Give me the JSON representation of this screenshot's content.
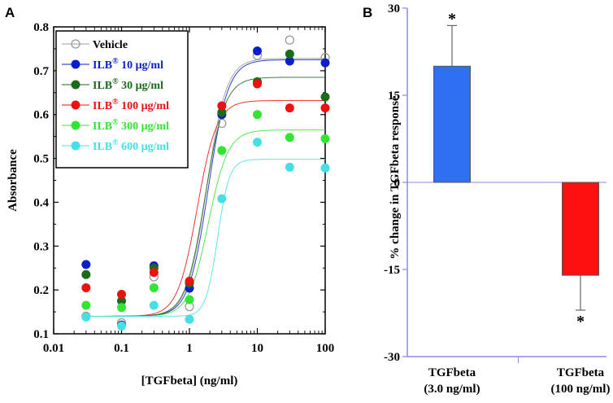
{
  "panel_a_letter": "A",
  "panel_b_letter": "B",
  "chart_data": [
    {
      "type": "scatter",
      "xscale": "log",
      "xlabel": "[TGFbeta] (ng/ml)",
      "ylabel": "Absorbance",
      "xlim": [
        0.01,
        100
      ],
      "ylim": [
        0.1,
        0.8
      ],
      "xticks": [
        0.01,
        0.1,
        1,
        10,
        100
      ],
      "xtick_labels": [
        "0.01",
        "0.1",
        "1",
        "10",
        "100"
      ],
      "yticks": [
        0.1,
        0.2,
        0.3,
        0.4,
        0.5,
        0.6,
        0.7,
        0.8
      ],
      "ytick_labels": [
        "0.1",
        "0.2",
        "0.3",
        "0.4",
        "0.5",
        "0.6",
        "0.7",
        "0.8"
      ],
      "legend_position": "top-left",
      "x": [
        0.03,
        0.1,
        0.3,
        1,
        3,
        10,
        30,
        100
      ],
      "series": [
        {
          "name": "Vehicle",
          "prefix": "",
          "suffix": "",
          "color": "#999999",
          "hollow": true,
          "values": [
            0.14,
            0.125,
            0.23,
            0.162,
            0.58,
            0.735,
            0.77,
            0.73
          ],
          "fit": {
            "bottom": 0.14,
            "top": 0.728,
            "ec50": 1.8,
            "hill": 3.0
          }
        },
        {
          "name": "ILB® 10 μg/ml",
          "prefix": "ILB",
          "suffix": " 10 μg/ml",
          "color": "#0a1fc8",
          "hollow": false,
          "values": [
            0.258,
            0.12,
            0.255,
            0.204,
            0.6,
            0.745,
            0.722,
            0.718
          ],
          "fit": {
            "bottom": 0.14,
            "top": 0.725,
            "ec50": 1.9,
            "hill": 3.0
          }
        },
        {
          "name": "ILB® 30 μg/ml",
          "prefix": "ILB",
          "suffix": " 30 μg/ml",
          "color": "#1a6b1a",
          "hollow": false,
          "values": [
            0.235,
            0.175,
            0.25,
            0.215,
            0.605,
            0.675,
            0.738,
            0.64
          ],
          "fit": {
            "bottom": 0.14,
            "top": 0.685,
            "ec50": 1.7,
            "hill": 3.0
          }
        },
        {
          "name": "ILB® 100 μg/ml",
          "prefix": "ILB",
          "suffix": " 100 μg/ml",
          "color": "#ee1111",
          "hollow": false,
          "values": [
            0.205,
            0.19,
            0.24,
            0.22,
            0.62,
            0.67,
            0.615,
            0.615
          ],
          "fit": {
            "bottom": 0.14,
            "top": 0.632,
            "ec50": 1.3,
            "hill": 3.0
          }
        },
        {
          "name": "ILB® 300 μg/ml",
          "prefix": "ILB",
          "suffix": " 300 μg/ml",
          "color": "#33e533",
          "hollow": false,
          "values": [
            0.165,
            0.16,
            0.205,
            0.178,
            0.518,
            0.6,
            0.548,
            0.545
          ],
          "fit": {
            "bottom": 0.14,
            "top": 0.565,
            "ec50": 1.9,
            "hill": 3.0
          }
        },
        {
          "name": "ILB® 600 μg/ml",
          "prefix": "ILB",
          "suffix": " 600 μg/ml",
          "color": "#44e0e6",
          "hollow": false,
          "values": [
            0.138,
            0.118,
            0.165,
            0.133,
            0.408,
            0.537,
            0.48,
            0.478
          ],
          "fit": {
            "bottom": 0.14,
            "top": 0.498,
            "ec50": 2.6,
            "hill": 5.0
          }
        }
      ]
    },
    {
      "type": "bar",
      "ylabel": "% change in TGFbeta response",
      "ylim": [
        -30,
        30
      ],
      "yticks": [
        -30,
        -15,
        0,
        15,
        30
      ],
      "ytick_labels": [
        "-30",
        "-15",
        "0",
        "15",
        "30"
      ],
      "categories": [
        {
          "line1": "TGFbeta",
          "line2": "(3.0 ng/ml)"
        },
        {
          "line1": "TGFbeta",
          "line2": "(100 ng/ml)"
        }
      ],
      "values": [
        20,
        -16
      ],
      "errors": [
        7,
        6
      ],
      "colors": [
        "#2f6ff0",
        "#ff1010"
      ],
      "annotations": [
        "*",
        "*"
      ]
    }
  ]
}
